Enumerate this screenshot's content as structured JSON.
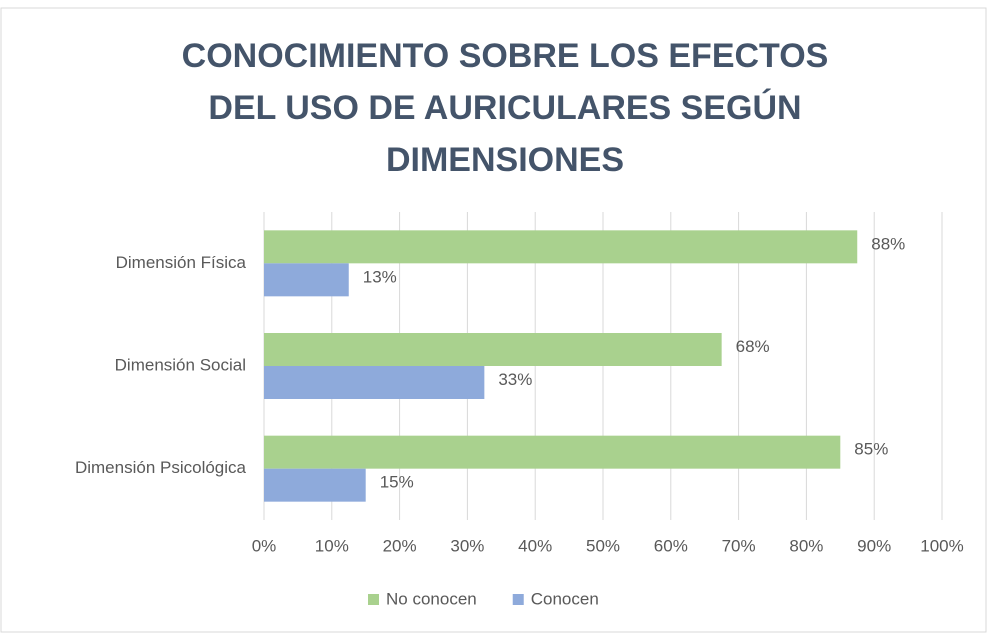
{
  "chart_data": {
    "type": "bar",
    "orientation": "horizontal",
    "title": "CONOCIMIENTO SOBRE LOS EFECTOS DEL USO DE AURICULARES SEGÚN DIMENSIONES",
    "categories": [
      "Dimensión Física",
      "Dimensión Social",
      "Dimensión Psicológica"
    ],
    "series": [
      {
        "name": "No conocen",
        "color": "#a9d18e",
        "values": [
          87.5,
          67.5,
          85
        ],
        "value_labels": [
          "88%",
          "68%",
          "85%"
        ]
      },
      {
        "name": "Conocen",
        "color": "#8eaadb",
        "values": [
          12.5,
          32.5,
          15
        ],
        "value_labels": [
          "13%",
          "33%",
          "15%"
        ]
      }
    ],
    "xlim": [
      0,
      100
    ],
    "xticks": [
      {
        "value": 0,
        "label": "0%"
      },
      {
        "value": 10,
        "label": "10%"
      },
      {
        "value": 20,
        "label": "20%"
      },
      {
        "value": 30,
        "label": "30%"
      },
      {
        "value": 40,
        "label": "40%"
      },
      {
        "value": 50,
        "label": "50%"
      },
      {
        "value": 60,
        "label": "60%"
      },
      {
        "value": 70,
        "label": "70%"
      },
      {
        "value": 80,
        "label": "80%"
      },
      {
        "value": 90,
        "label": "90%"
      },
      {
        "value": 100,
        "label": "100%"
      }
    ],
    "grid": true,
    "legend": "bottom"
  }
}
